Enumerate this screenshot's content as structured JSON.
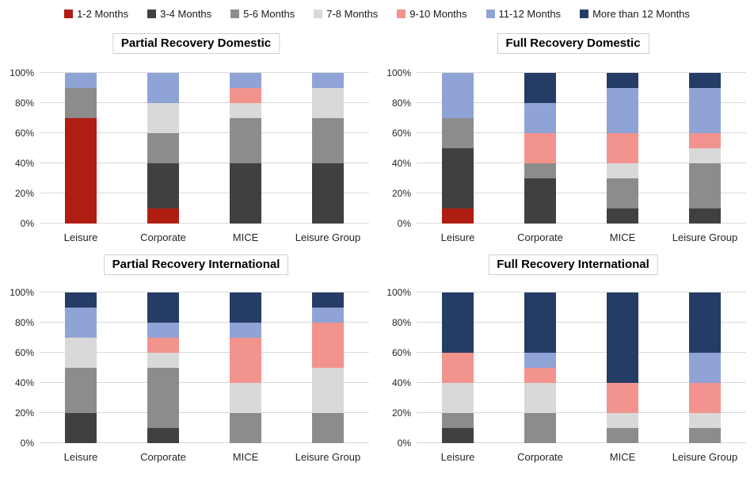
{
  "legend": {
    "items": [
      {
        "label": "1-2 Months",
        "color": "#B01D12"
      },
      {
        "label": "3-4 Months",
        "color": "#404040"
      },
      {
        "label": "5-6 Months",
        "color": "#8C8C8C"
      },
      {
        "label": "7-8 Months",
        "color": "#D9D9D9"
      },
      {
        "label": "9-10 Months",
        "color": "#F2938D"
      },
      {
        "label": "11-12 Months",
        "color": "#8FA3D7"
      },
      {
        "label": "More than 12 Months",
        "color": "#253C66"
      }
    ]
  },
  "style": {
    "gridline_color": "#d9d9d9",
    "title_border_color": "#d0d0d0",
    "axis_text_color": "#262626"
  },
  "chart_data": [
    {
      "type": "bar",
      "stacked": true,
      "units": "percent",
      "title": "Partial Recovery Domestic",
      "categories": [
        "Leisure",
        "Corporate",
        "MICE",
        "Leisure Group"
      ],
      "yticks": [
        "0%",
        "20%",
        "40%",
        "60%",
        "80%",
        "100%"
      ],
      "ylim": [
        0,
        100
      ],
      "legend_position": "top-shared",
      "series": [
        {
          "name": "1-2 Months",
          "values": [
            70,
            10,
            0,
            0
          ]
        },
        {
          "name": "3-4 Months",
          "values": [
            0,
            30,
            40,
            40
          ]
        },
        {
          "name": "5-6 Months",
          "values": [
            20,
            20,
            30,
            30
          ]
        },
        {
          "name": "7-8 Months",
          "values": [
            0,
            20,
            10,
            20
          ]
        },
        {
          "name": "9-10 Months",
          "values": [
            0,
            0,
            10,
            0
          ]
        },
        {
          "name": "11-12 Months",
          "values": [
            10,
            20,
            10,
            10
          ]
        },
        {
          "name": "More than 12 Months",
          "values": [
            0,
            0,
            0,
            0
          ]
        }
      ]
    },
    {
      "type": "bar",
      "stacked": true,
      "units": "percent",
      "title": "Full Recovery Domestic",
      "categories": [
        "Leisure",
        "Corporate",
        "MICE",
        "Leisure Group"
      ],
      "yticks": [
        "0%",
        "20%",
        "40%",
        "60%",
        "80%",
        "100%"
      ],
      "ylim": [
        0,
        100
      ],
      "legend_position": "top-shared",
      "series": [
        {
          "name": "1-2 Months",
          "values": [
            10,
            0,
            0,
            0
          ]
        },
        {
          "name": "3-4 Months",
          "values": [
            40,
            30,
            10,
            10
          ]
        },
        {
          "name": "5-6 Months",
          "values": [
            20,
            10,
            20,
            30
          ]
        },
        {
          "name": "7-8 Months",
          "values": [
            0,
            0,
            10,
            10
          ]
        },
        {
          "name": "9-10 Months",
          "values": [
            0,
            20,
            20,
            10
          ]
        },
        {
          "name": "11-12 Months",
          "values": [
            30,
            20,
            30,
            30
          ]
        },
        {
          "name": "More than 12 Months",
          "values": [
            0,
            20,
            10,
            10
          ]
        }
      ]
    },
    {
      "type": "bar",
      "stacked": true,
      "units": "percent",
      "title": "Partial Recovery International",
      "categories": [
        "Leisure",
        "Corporate",
        "MICE",
        "Leisure Group"
      ],
      "yticks": [
        "0%",
        "20%",
        "40%",
        "60%",
        "80%",
        "100%"
      ],
      "ylim": [
        0,
        100
      ],
      "legend_position": "top-shared",
      "series": [
        {
          "name": "1-2 Months",
          "values": [
            0,
            0,
            0,
            0
          ]
        },
        {
          "name": "3-4 Months",
          "values": [
            20,
            10,
            0,
            0
          ]
        },
        {
          "name": "5-6 Months",
          "values": [
            30,
            40,
            20,
            20
          ]
        },
        {
          "name": "7-8 Months",
          "values": [
            20,
            10,
            20,
            30
          ]
        },
        {
          "name": "9-10 Months",
          "values": [
            0,
            10,
            30,
            30
          ]
        },
        {
          "name": "11-12 Months",
          "values": [
            20,
            10,
            10,
            10
          ]
        },
        {
          "name": "More than 12 Months",
          "values": [
            10,
            20,
            20,
            10
          ]
        }
      ]
    },
    {
      "type": "bar",
      "stacked": true,
      "units": "percent",
      "title": "Full Recovery International",
      "categories": [
        "Leisure",
        "Corporate",
        "MICE",
        "Leisure Group"
      ],
      "yticks": [
        "0%",
        "20%",
        "40%",
        "60%",
        "80%",
        "100%"
      ],
      "ylim": [
        0,
        100
      ],
      "legend_position": "top-shared",
      "series": [
        {
          "name": "1-2 Months",
          "values": [
            0,
            0,
            0,
            0
          ]
        },
        {
          "name": "3-4 Months",
          "values": [
            10,
            0,
            0,
            0
          ]
        },
        {
          "name": "5-6 Months",
          "values": [
            10,
            20,
            10,
            10
          ]
        },
        {
          "name": "7-8 Months",
          "values": [
            20,
            20,
            10,
            10
          ]
        },
        {
          "name": "9-10 Months",
          "values": [
            20,
            10,
            20,
            20
          ]
        },
        {
          "name": "11-12 Months",
          "values": [
            0,
            10,
            0,
            20
          ]
        },
        {
          "name": "More than 12 Months",
          "values": [
            40,
            40,
            60,
            40
          ]
        }
      ]
    }
  ]
}
